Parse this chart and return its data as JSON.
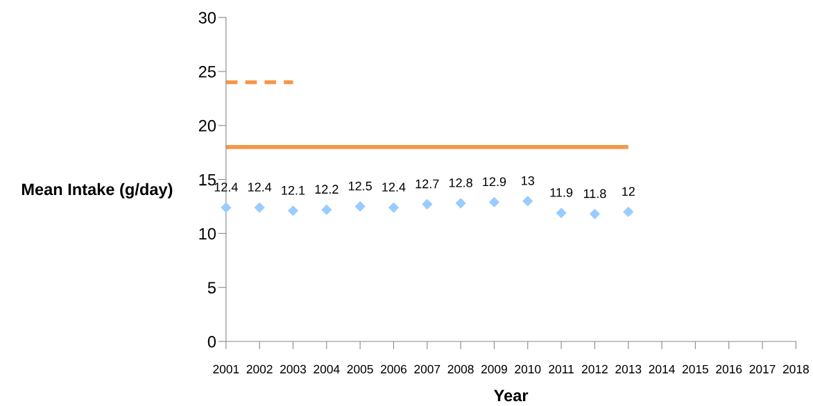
{
  "chart_data": {
    "type": "scatter",
    "xlabel": "Year",
    "ylabel": "Mean Intake (g/day)",
    "xlim": [
      2001,
      2018
    ],
    "xticks": [
      2001,
      2002,
      2003,
      2004,
      2005,
      2006,
      2007,
      2008,
      2009,
      2010,
      2011,
      2012,
      2013,
      2014,
      2015,
      2016,
      2017,
      2018
    ],
    "ylim": [
      0,
      30
    ],
    "yticks": [
      0,
      5,
      10,
      15,
      20,
      25,
      30
    ],
    "grid": false,
    "series": [
      {
        "marker": "diamond",
        "color": "#99ccff",
        "x": [
          2001,
          2002,
          2003,
          2004,
          2005,
          2006,
          2007,
          2008,
          2009,
          2010,
          2011,
          2012,
          2013
        ],
        "values": [
          12.4,
          12.4,
          12.1,
          12.2,
          12.5,
          12.4,
          12.7,
          12.8,
          12.9,
          13,
          11.9,
          11.8,
          12
        ],
        "value_labels": [
          "12.4",
          "12.4",
          "12.1",
          "12.2",
          "12.5",
          "12.4",
          "12.7",
          "12.8",
          "12.9",
          "13",
          "11.9",
          "11.8",
          "12"
        ]
      },
      {
        "type": "line",
        "line_style": "solid",
        "color": "#f79646",
        "x": [
          2001,
          2013
        ],
        "values": [
          18,
          18
        ]
      },
      {
        "type": "line",
        "line_style": "dashed",
        "color": "#f79646",
        "x": [
          2001,
          2003
        ],
        "values": [
          24,
          24
        ]
      }
    ]
  }
}
